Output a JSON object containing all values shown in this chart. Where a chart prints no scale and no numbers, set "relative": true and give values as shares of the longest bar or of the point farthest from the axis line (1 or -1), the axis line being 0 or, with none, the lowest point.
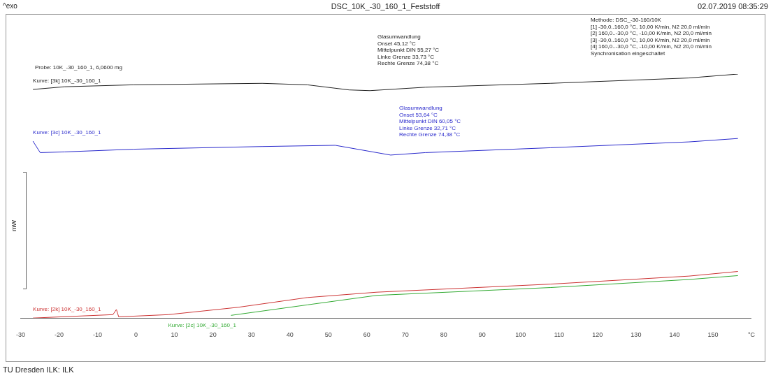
{
  "chart_data": {
    "type": "line",
    "title": "DSC_10K_-30_160_1_Feststoff",
    "ylabel": "mW",
    "relative": true,
    "legend": false,
    "grid": false,
    "marker": "none",
    "line_style": "solid",
    "xlim": [
      -30,
      160
    ],
    "xticks": [
      -30,
      -20,
      -10,
      0,
      10,
      20,
      30,
      40,
      50,
      60,
      70,
      80,
      90,
      100,
      110,
      120,
      130,
      140,
      150,
      {
        "value": 160,
        "label": "°C"
      }
    ],
    "series": [
      {
        "name": "Kurve: [3k] 10K_-30_160_1",
        "color": "#222222",
        "x": [
          -26.8,
          -18.6,
          -0.6,
          32.8,
          44.5,
          55.4,
          60.8,
          75.2,
          107.7,
          143.8,
          156.5
        ],
        "values": [
          0.937,
          0.948,
          0.956,
          0.962,
          0.956,
          0.935,
          0.932,
          0.946,
          0.962,
          0.984,
          1
        ]
      },
      {
        "name": "Kurve: [3c] 10K_-30_160_1",
        "color": "#2a2acc",
        "x": [
          -26.8,
          -24.9,
          -18.6,
          -0.6,
          32.8,
          51.8,
          66.2,
          75.2,
          107.7,
          143.8,
          156.5
        ],
        "values": [
          0.725,
          0.678,
          0.681,
          0.692,
          0.703,
          0.708,
          0.668,
          0.678,
          0.698,
          0.722,
          0.736
        ]
      },
      {
        "name": "Kurve: [2k] 10K_-30_160_1",
        "color": "#cc3333",
        "x": [
          -26.8,
          -6.0,
          -5.1,
          -4.5,
          8.4,
          26.5,
          44.5,
          62.6,
          107.7,
          143.8,
          156.5
        ],
        "values": [
          0,
          0.014,
          0.035,
          0.005,
          0.014,
          0.044,
          0.084,
          0.106,
          0.139,
          0.172,
          0.191
        ]
      },
      {
        "name": "Kurve: [2c] 10K_-30_160_1",
        "color": "#33aa33",
        "x": [
          24.7,
          44.5,
          62.6,
          107.7,
          143.8,
          156.5
        ],
        "values": [
          0.011,
          0.054,
          0.093,
          0.125,
          0.158,
          0.174
        ]
      }
    ],
    "annotations": [
      "^exo",
      "02.07.2019 08:35:29",
      "Probe: 10K_-30_160_1, 6,0600 mg",
      "Glasumwandlung\nOnset 45,12 °C\nMittelpunkt DIN 55,27 °C\nLinke Grenze 33,73 °C\nRechte Grenze 74,38 °C",
      "Glasumwandlung\nOnset 53,64 °C\nMittelpunkt DIN 60,05 °C\nLinke Grenze 32,71 °C\nRechte Grenze 74,38 °C",
      "Methode: DSC_-30-160/10K\n[1] -30,0..160,0 °C, 10,00 K/min, N2 20,0 ml/min\n[2] 160,0..-30,0 °C, -10,00 K/min, N2 20,0 ml/min\n[3] -30,0..160,0 °C, 10,00 K/min, N2 20,0 ml/min\n[4] 160,0..-30,0 °C, -10,00 K/min, N2 20,0 ml/min\nSynchronisation eingeschaltet",
      "TU Dresden ILK: ILK"
    ]
  }
}
